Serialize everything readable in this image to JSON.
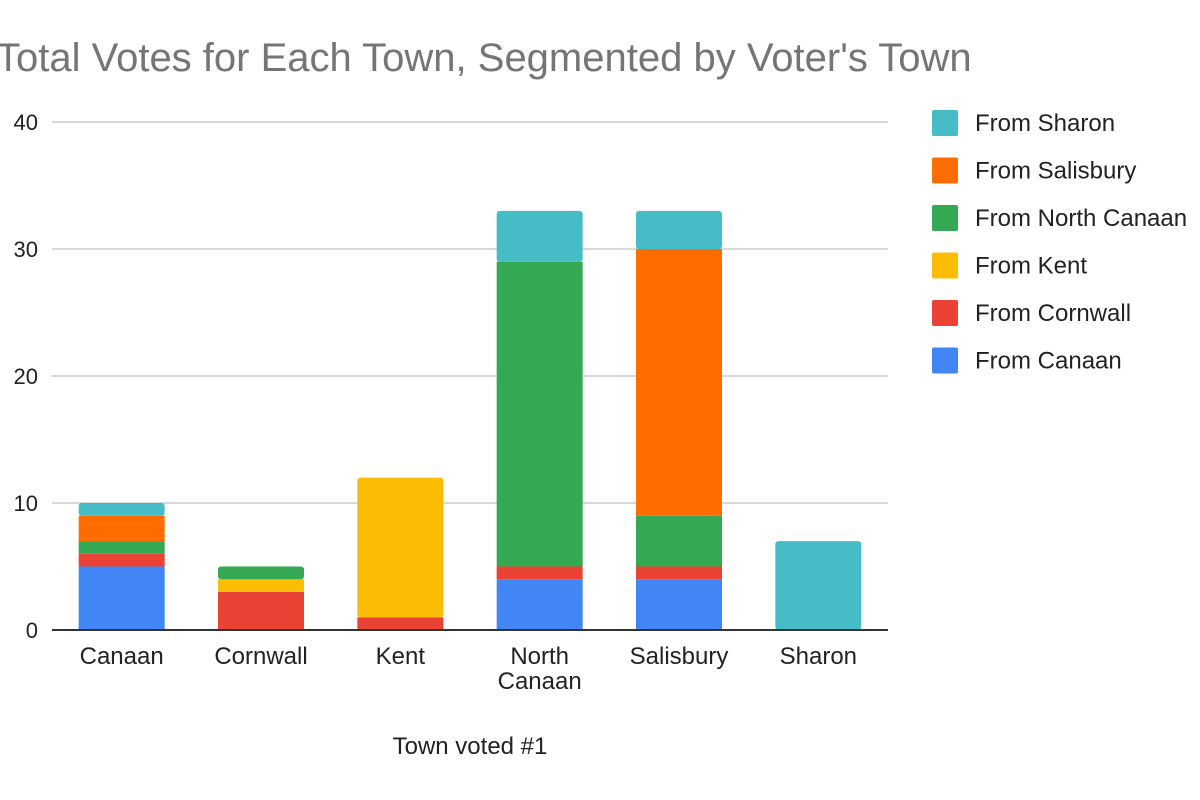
{
  "chart_data": {
    "type": "bar",
    "stacked": true,
    "title": "Total Votes for Each Town, Segmented by Voter's Town",
    "xlabel": "Town voted #1",
    "ylabel": "",
    "ylim": [
      0,
      40
    ],
    "yticks": [
      0,
      10,
      20,
      30,
      40
    ],
    "grid": true,
    "legend_position": "right",
    "categories": [
      "Canaan",
      "Cornwall",
      "Kent",
      "North Canaan",
      "Salisbury",
      "Sharon"
    ],
    "series": [
      {
        "name": "From Canaan",
        "color": "#4285f4",
        "values": [
          5,
          0,
          0,
          4,
          4,
          0
        ]
      },
      {
        "name": "From Cornwall",
        "color": "#ea4335",
        "values": [
          1,
          3,
          1,
          1,
          1,
          0
        ]
      },
      {
        "name": "From Kent",
        "color": "#fbbc04",
        "values": [
          0,
          1,
          11,
          0,
          0,
          0
        ]
      },
      {
        "name": "From North Canaan",
        "color": "#34a853",
        "values": [
          1,
          1,
          0,
          24,
          4,
          0
        ]
      },
      {
        "name": "From Salisbury",
        "color": "#ff6d01",
        "values": [
          2,
          0,
          0,
          0,
          21,
          0
        ]
      },
      {
        "name": "From Sharon",
        "color": "#46bdc6",
        "values": [
          1,
          0,
          0,
          4,
          3,
          7
        ]
      }
    ]
  }
}
